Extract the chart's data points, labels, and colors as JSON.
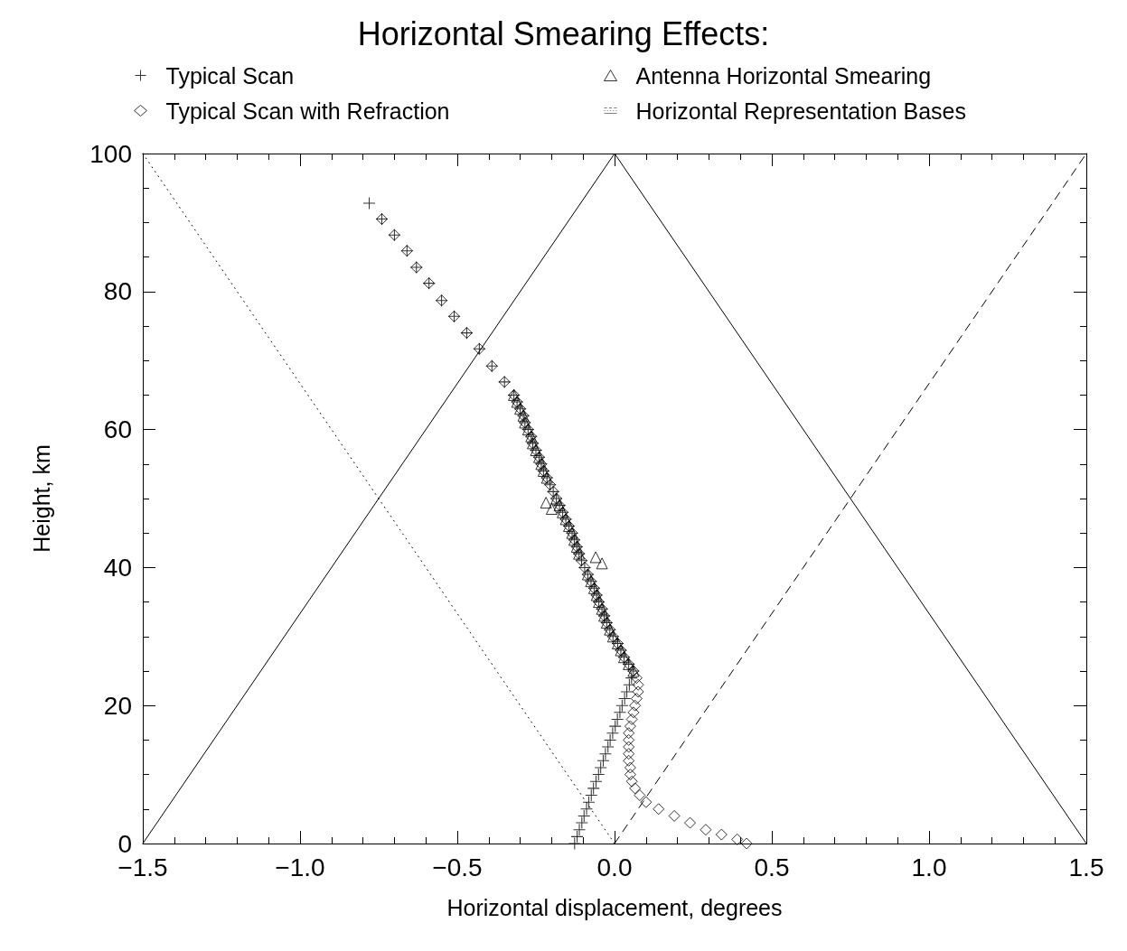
{
  "chart_data": {
    "type": "scatter",
    "title": "Horizontal Smearing Effects:",
    "xlabel": "Horizontal displacement, degrees",
    "ylabel": "Height, km",
    "xlim": [
      -1.5,
      1.5
    ],
    "xticks": [
      {
        "value": -1.5,
        "label": "−1.5"
      },
      {
        "value": -1,
        "label": "−1.0"
      },
      {
        "value": -0.5,
        "label": "−0.5"
      },
      {
        "value": 0,
        "label": "0.0"
      },
      0.5,
      {
        "value": 1,
        "label": "1.0"
      },
      1.5
    ],
    "ylim": [
      0,
      100
    ],
    "yticks": [
      0,
      20,
      40,
      60,
      80,
      100
    ],
    "grid": false,
    "legend": "top",
    "series": [
      {
        "name": "Typical Scan",
        "marker": "cross",
        "color": "#000000",
        "x": [
          -0.78,
          -0.74,
          -0.7,
          -0.66,
          -0.63,
          -0.59,
          -0.55,
          -0.51,
          -0.47,
          -0.43,
          -0.39,
          -0.35,
          -0.32,
          -0.31,
          -0.3,
          -0.29,
          -0.285,
          -0.275,
          -0.265,
          -0.26,
          -0.25,
          -0.24,
          -0.233,
          -0.226,
          -0.215,
          -0.205,
          -0.195,
          -0.185,
          -0.175,
          -0.165,
          -0.155,
          -0.145,
          -0.135,
          -0.128,
          -0.12,
          -0.113,
          -0.105,
          -0.095,
          -0.085,
          -0.075,
          -0.065,
          -0.057,
          -0.05,
          -0.04,
          -0.033,
          -0.025,
          -0.015,
          -0.005,
          0.01,
          0.02,
          0.03,
          0.045,
          0.06,
          0.054,
          0.047,
          0.039,
          0.032,
          0.024,
          0.017,
          0.009,
          0.002,
          -0.006,
          -0.014,
          -0.021,
          -0.029,
          -0.036,
          -0.044,
          -0.051,
          -0.059,
          -0.067,
          -0.074,
          -0.082,
          -0.089,
          -0.097,
          -0.104,
          -0.112,
          -0.119,
          -0.127
        ],
        "values": [
          92.8,
          90.5,
          88.2,
          85.9,
          83.5,
          81.2,
          78.7,
          76.4,
          74,
          71.7,
          69.2,
          66.9,
          65,
          64,
          63,
          62,
          61,
          60,
          59,
          58,
          57,
          56,
          55,
          54,
          53,
          52,
          51,
          50,
          49,
          48,
          47,
          46,
          45,
          44,
          43,
          42,
          41,
          40,
          39,
          38,
          37,
          36,
          35,
          34,
          33,
          32,
          31,
          30,
          29,
          28,
          27,
          26,
          25,
          24,
          23,
          22,
          21,
          20,
          19,
          18,
          17,
          16,
          15,
          14,
          13,
          12,
          11,
          10,
          9,
          8,
          7,
          6,
          5,
          4,
          3,
          2,
          1,
          0
        ]
      },
      {
        "name": "Typical Scan with Refraction",
        "marker": "diamond",
        "color": "#000000",
        "x": [
          -0.74,
          -0.7,
          -0.66,
          -0.63,
          -0.59,
          -0.55,
          -0.51,
          -0.47,
          -0.43,
          -0.39,
          -0.35,
          -0.32,
          -0.31,
          -0.3,
          -0.29,
          -0.285,
          -0.275,
          -0.265,
          -0.26,
          -0.25,
          -0.24,
          -0.233,
          -0.226,
          -0.215,
          -0.205,
          -0.195,
          -0.185,
          -0.175,
          -0.165,
          -0.155,
          -0.145,
          -0.135,
          -0.128,
          -0.12,
          -0.113,
          -0.105,
          -0.095,
          -0.085,
          -0.075,
          -0.065,
          -0.057,
          -0.05,
          -0.04,
          -0.033,
          -0.025,
          -0.015,
          -0.005,
          0.01,
          0.02,
          0.03,
          0.045,
          0.06,
          0.07,
          0.075,
          0.075,
          0.07,
          0.065,
          0.06,
          0.055,
          0.05,
          0.045,
          0.045,
          0.045,
          0.045,
          0.045,
          0.05,
          0.05,
          0.055,
          0.065,
          0.08,
          0.1,
          0.14,
          0.19,
          0.24,
          0.29,
          0.34,
          0.39,
          0.42
        ],
        "values": [
          90.5,
          88.2,
          85.9,
          83.5,
          81.2,
          78.7,
          76.4,
          74,
          71.7,
          69.2,
          66.9,
          65,
          64,
          63,
          62,
          61,
          60,
          59,
          58,
          57,
          56,
          55,
          54,
          53,
          52,
          51,
          50,
          49,
          48,
          47,
          46,
          45,
          44,
          43,
          42,
          41,
          40,
          39,
          38,
          37,
          36,
          35,
          34,
          33,
          32,
          31,
          30,
          29,
          28,
          27,
          26,
          25,
          24,
          23,
          22,
          21,
          20,
          19,
          18,
          17,
          16,
          15,
          14,
          13,
          12,
          11,
          10,
          9,
          8,
          7,
          6,
          5,
          4,
          3,
          2,
          1.3,
          0.6,
          0
        ]
      },
      {
        "name": "Antenna Horizontal Smearing",
        "marker": "triangle",
        "color": "#000000",
        "x": [
          -0.32,
          -0.31,
          -0.3,
          -0.29,
          -0.285,
          -0.275,
          -0.265,
          -0.26,
          -0.25,
          -0.24,
          -0.233,
          -0.226,
          -0.215,
          -0.218,
          -0.2,
          -0.185,
          -0.175,
          -0.165,
          -0.155,
          -0.145,
          -0.135,
          -0.128,
          -0.12,
          -0.113,
          -0.06,
          -0.04,
          -0.085,
          -0.075,
          -0.065,
          -0.057,
          -0.05,
          -0.04,
          -0.033,
          -0.025,
          -0.015,
          -0.005,
          0.01,
          0.02,
          0.03,
          0.045,
          0.06
        ],
        "values": [
          65,
          64,
          63,
          62,
          61,
          60,
          59,
          58,
          57,
          56,
          55,
          54,
          53,
          49.4,
          48.5,
          50,
          49,
          48,
          47,
          46,
          45,
          44,
          43,
          42,
          41.5,
          40.6,
          39,
          38,
          37,
          36,
          35,
          34,
          33,
          32,
          31,
          30,
          29,
          28,
          27,
          26,
          25
        ]
      },
      {
        "name": "Horizontal Representation Bases",
        "type": "line",
        "line_style": "solid",
        "color": "#000000",
        "x": [
          -1.5,
          0,
          1.5
        ],
        "values": [
          0,
          100,
          0
        ]
      },
      {
        "type": "line",
        "line_style": "dotted",
        "color": "#000000",
        "x": [
          -1.5,
          0
        ],
        "values": [
          100,
          0
        ]
      },
      {
        "type": "line",
        "line_style": "dashed",
        "color": "#000000",
        "x": [
          0,
          1.5
        ],
        "values": [
          0,
          100
        ]
      }
    ]
  }
}
